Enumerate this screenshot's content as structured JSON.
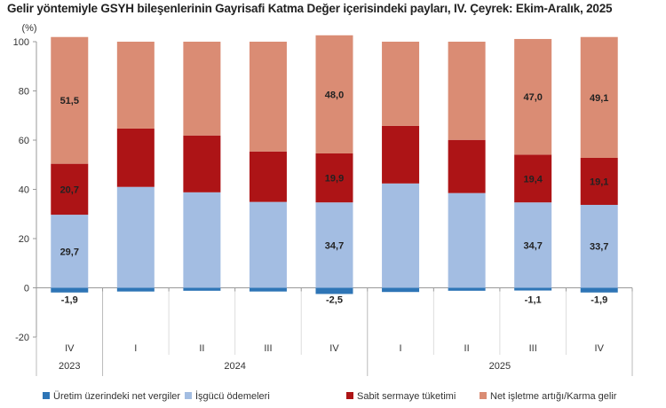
{
  "chart_data": {
    "type": "bar",
    "stacked": true,
    "title": "Gelir yöntemiyle GSYH bileşenlerinin Gayrisafi Katma Değer içerisindeki payları, IV. Çeyrek: Ekim-Aralık, 2025",
    "ylabel": "(%)",
    "ylim": [
      -20,
      100
    ],
    "yticks": [
      -20,
      0,
      20,
      40,
      60,
      80,
      100
    ],
    "categories": [
      "IV",
      "I",
      "II",
      "III",
      "IV",
      "I",
      "II",
      "III",
      "IV"
    ],
    "year_groups": [
      {
        "label": "2023",
        "count": 1
      },
      {
        "label": "2024",
        "count": 4
      },
      {
        "label": "2025",
        "count": 4
      }
    ],
    "legend_position": "bottom",
    "series": [
      {
        "name": "Üretim üzerindeki net vergiler",
        "color": "#2e75b6",
        "values": [
          -1.9,
          -1.5,
          -1.2,
          -1.5,
          -2.5,
          -1.7,
          -1.2,
          -1.1,
          -1.9
        ],
        "labels": [
          "-1,9",
          null,
          null,
          null,
          "-2,5",
          null,
          null,
          "-1,1",
          "-1,9"
        ]
      },
      {
        "name": "İşgücü ödemeleri",
        "color": "#a3bde2",
        "values": [
          29.7,
          41.0,
          38.8,
          34.9,
          34.7,
          42.4,
          38.5,
          34.7,
          33.7
        ],
        "labels": [
          "29,7",
          null,
          null,
          null,
          "34,7",
          null,
          null,
          "34,7",
          "33,7"
        ]
      },
      {
        "name": "Sabit sermaye tüketimi",
        "color": "#ad1416",
        "values": [
          20.7,
          23.7,
          23.1,
          20.5,
          19.9,
          23.4,
          21.6,
          19.4,
          19.1
        ],
        "labels": [
          "20,7",
          null,
          null,
          null,
          "19,9",
          null,
          null,
          "19,4",
          "19,1"
        ]
      },
      {
        "name": "Net işletme artığı/Karma gelir",
        "color": "#da8c74",
        "values": [
          51.5,
          35.3,
          38.1,
          44.6,
          48.0,
          34.2,
          39.9,
          47.0,
          49.1
        ],
        "labels": [
          "51,5",
          null,
          null,
          null,
          "48,0",
          null,
          null,
          "47,0",
          "49,1"
        ]
      }
    ]
  }
}
